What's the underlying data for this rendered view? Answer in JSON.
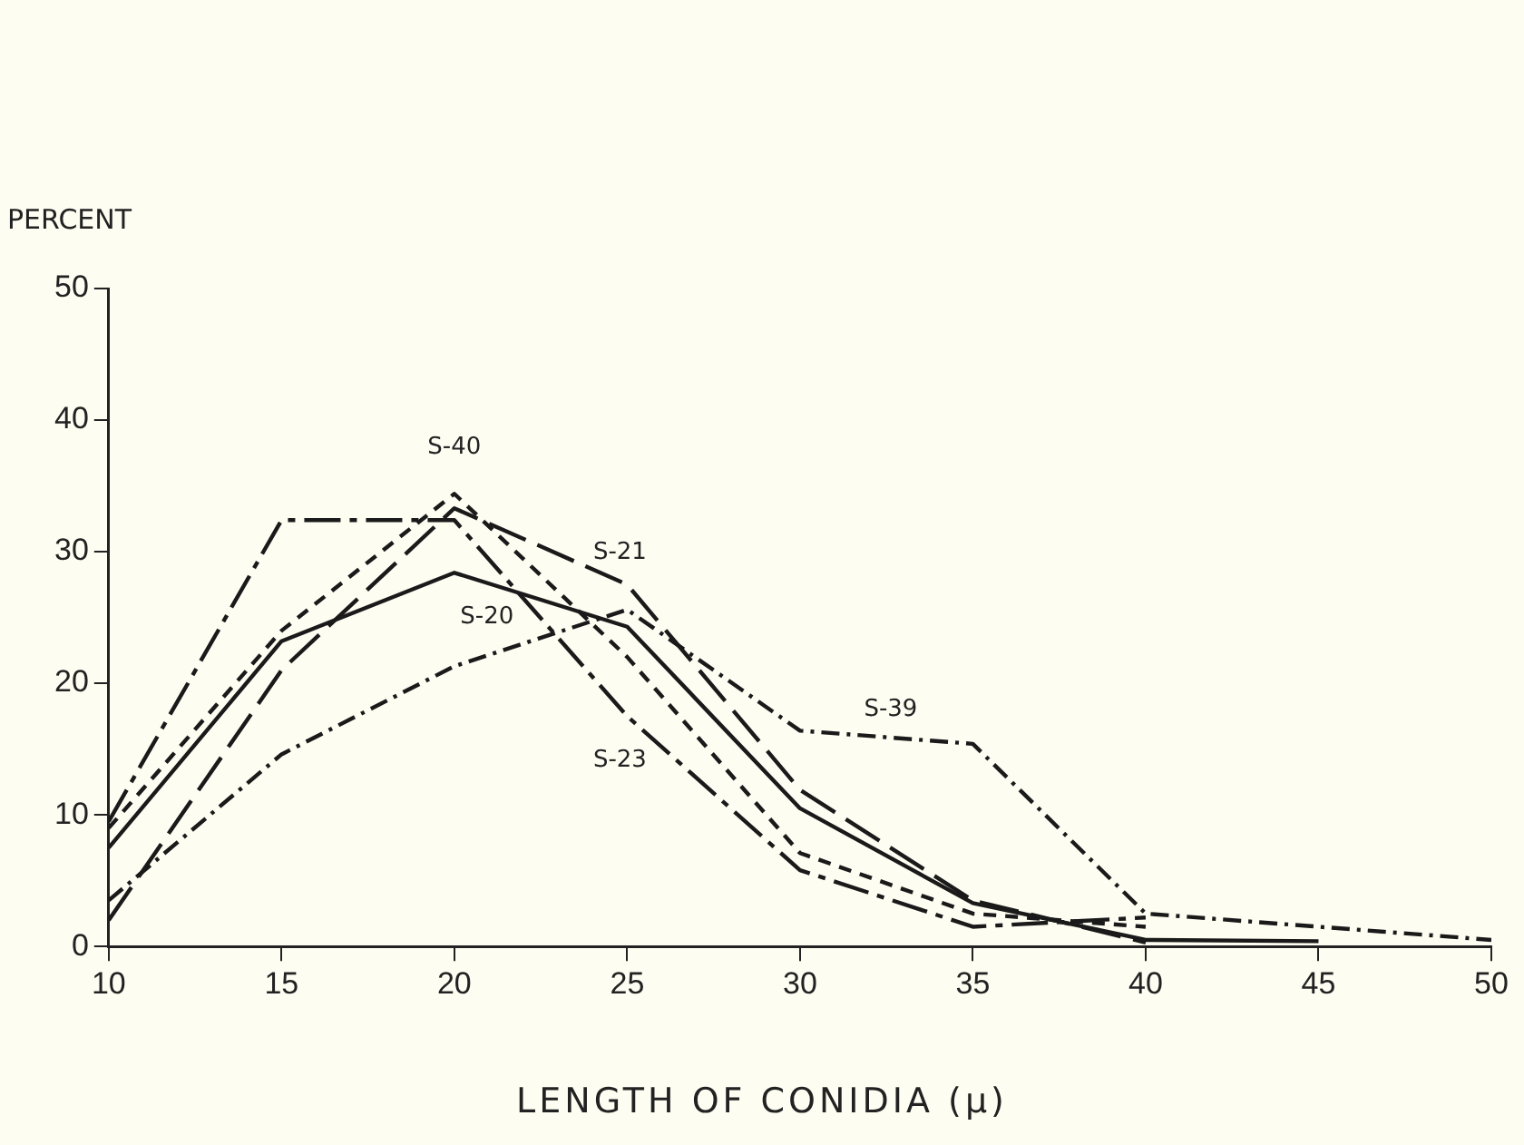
{
  "chart_data": {
    "type": "line",
    "ylabel": "PERCENT",
    "xlabel": "LENGTH OF CONIDIA (μ)",
    "xlim": [
      10,
      50
    ],
    "xticks": [
      10,
      15,
      20,
      25,
      30,
      35,
      40,
      45,
      50
    ],
    "ylim": [
      0,
      50
    ],
    "yticks": [
      0,
      10,
      20,
      30,
      40,
      50
    ],
    "grid": false,
    "legend": false,
    "marker": "none",
    "series": [
      {
        "name": "S-20",
        "color": "#1a1a1a",
        "line_style": "solid",
        "x": [
          10,
          15,
          20,
          25,
          30,
          35,
          40,
          45
        ],
        "values": [
          7.5,
          23.2,
          28.4,
          24.3,
          10.5,
          3.3,
          0.5,
          0.4
        ]
      },
      {
        "name": "S-21",
        "color": "#1a1a1a",
        "line_style": "dashed",
        "x": [
          10,
          15,
          20,
          25,
          30,
          35,
          40
        ],
        "values": [
          2,
          21,
          33.3,
          27.5,
          11.9,
          3.5,
          0.3
        ]
      },
      {
        "name": "S-40",
        "color": "#1a1a1a",
        "line_style": "dashed",
        "x": [
          10,
          15,
          20,
          25,
          30,
          35,
          40
        ],
        "values": [
          9,
          24,
          34.4,
          22,
          7.1,
          2.5,
          1.5
        ]
      },
      {
        "name": "S-23",
        "color": "#1a1a1a",
        "line_style": "dashed",
        "x": [
          10,
          15,
          20,
          25,
          30,
          35,
          40
        ],
        "values": [
          9.5,
          32.4,
          32.4,
          17.5,
          5.8,
          1.5,
          2.2
        ]
      },
      {
        "name": "S-39",
        "color": "#1a1a1a",
        "line_style": "dotted",
        "x": [
          10,
          15,
          20,
          25,
          30,
          35,
          40,
          45,
          50
        ],
        "values": [
          3.5,
          14.6,
          21.3,
          25.6,
          16.4,
          15.4,
          2.5,
          1.5,
          0.5
        ]
      }
    ]
  }
}
